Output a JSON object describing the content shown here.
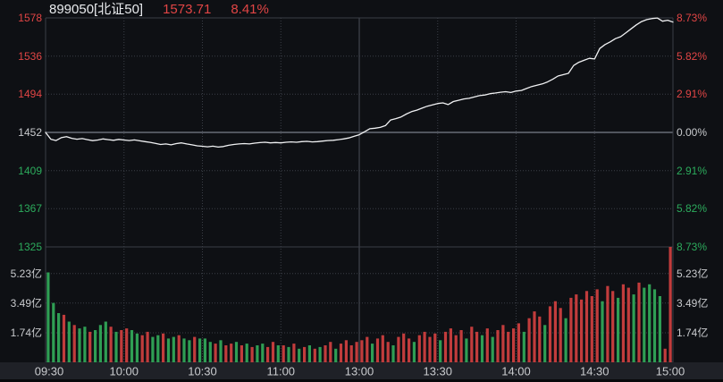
{
  "header": {
    "symbol": "899050[北证50]",
    "price": "1573.71",
    "change_pct": "8.41%"
  },
  "colors": {
    "background": "#0e1014",
    "axis_strip": "#1f2127",
    "border": "#3a3e46",
    "grid_dotted": "#3a3e46",
    "zero_line": "#51555e",
    "session_split_line": "#4a4e57",
    "up_red": "#e14545",
    "down_green": "#2cab5c",
    "neutral_text": "#c8cacd",
    "price_line": "#f0f1f3",
    "volume_up": "#c23c3c",
    "volume_down": "#2f9e54"
  },
  "chart_data": {
    "type": "line",
    "title": "899050[北证50] intraday price and volume",
    "legend_position": "none",
    "grid": "dotted",
    "x": {
      "session": [
        "09:30-11:30",
        "13:00-15:00"
      ],
      "tick_labels": [
        "09:30",
        "10:00",
        "10:30",
        "11:00",
        "13:00",
        "13:30",
        "14:00",
        "14:30",
        "15:00"
      ]
    },
    "price_axis": {
      "left_tick_labels": [
        "1578",
        "1536",
        "1494",
        "1452",
        "1409",
        "1367",
        "1325"
      ],
      "right_tick_labels": [
        "8.73%",
        "5.82%",
        "2.91%",
        "0.00%",
        "2.91%",
        "5.82%",
        "8.73%"
      ],
      "tick_colors": [
        "u",
        "u",
        "u",
        "n",
        "d",
        "d",
        "d"
      ],
      "range_pct": [
        -8.73,
        8.73
      ]
    },
    "volume_axis": {
      "tick_labels": [
        "5.23亿",
        "3.49亿",
        "1.74亿"
      ],
      "tick_values": [
        5.23,
        3.49,
        1.74
      ],
      "unit": "亿",
      "visible_max": 6.8
    },
    "price_pct": [
      0,
      -0.52,
      -0.62,
      -0.4,
      -0.32,
      -0.45,
      -0.52,
      -0.47,
      -0.55,
      -0.63,
      -0.58,
      -0.5,
      -0.55,
      -0.6,
      -0.53,
      -0.58,
      -0.62,
      -0.57,
      -0.64,
      -0.7,
      -0.76,
      -0.84,
      -0.92,
      -0.88,
      -0.95,
      -0.85,
      -0.8,
      -0.88,
      -0.95,
      -1.02,
      -1.06,
      -1.1,
      -1.05,
      -1.12,
      -1.08,
      -0.98,
      -0.92,
      -0.88,
      -0.85,
      -0.88,
      -0.82,
      -0.78,
      -0.75,
      -0.8,
      -0.77,
      -0.8,
      -0.75,
      -0.72,
      -0.75,
      -0.7,
      -0.68,
      -0.72,
      -0.7,
      -0.66,
      -0.62,
      -0.6,
      -0.55,
      -0.5,
      -0.42,
      -0.3,
      -0.18,
      0.05,
      0.28,
      0.32,
      0.38,
      0.52,
      0.95,
      1.05,
      1.18,
      1.4,
      1.58,
      1.7,
      1.85,
      2,
      2.1,
      2.2,
      2.25,
      2.12,
      2.35,
      2.45,
      2.55,
      2.6,
      2.7,
      2.8,
      2.85,
      2.95,
      3,
      3.06,
      3.1,
      3.04,
      3.15,
      3.2,
      3.35,
      3.5,
      3.6,
      3.7,
      3.85,
      4.05,
      4.3,
      4.4,
      4.5,
      5.1,
      5.35,
      5.5,
      5.65,
      5.6,
      6.4,
      6.7,
      6.9,
      7.15,
      7.3,
      7.6,
      7.9,
      8.2,
      8.45,
      8.6,
      8.68,
      8.72,
      8.48,
      8.55,
      8.41
    ],
    "volume_bars": {
      "values": [
        5.3,
        3.5,
        2.9,
        2.8,
        2.4,
        2.2,
        2.0,
        2.1,
        1.8,
        1.9,
        2.2,
        2.4,
        2.1,
        1.8,
        1.9,
        2.0,
        1.9,
        1.7,
        1.6,
        1.8,
        1.5,
        1.6,
        1.7,
        1.4,
        1.5,
        1.6,
        1.4,
        1.3,
        1.5,
        1.4,
        1.4,
        1.2,
        1.1,
        1.3,
        1.0,
        1.1,
        1.2,
        1.0,
        1.1,
        0.9,
        1.0,
        1.1,
        0.9,
        1.2,
        1.0,
        1.0,
        0.9,
        1.1,
        0.8,
        0.9,
        1.0,
        0.8,
        0.9,
        1.0,
        1.2,
        0.8,
        1.1,
        1.3,
        1.0,
        1.2,
        1.3,
        1.5,
        1.1,
        1.4,
        1.6,
        1.2,
        1.0,
        1.5,
        1.7,
        1.4,
        1.2,
        1.6,
        1.8,
        1.5,
        1.7,
        1.3,
        1.8,
        2.0,
        1.6,
        1.9,
        1.4,
        2.1,
        1.8,
        1.6,
        2.0,
        1.5,
        1.9,
        2.2,
        1.8,
        2.0,
        2.3,
        1.8,
        2.6,
        3.0,
        2.7,
        2.2,
        3.3,
        3.6,
        3.2,
        2.6,
        3.8,
        4.0,
        3.7,
        4.2,
        3.9,
        4.3,
        3.6,
        4.5,
        4.2,
        3.8,
        4.6,
        4.4,
        4.0,
        4.7,
        4.4,
        4.6,
        4.3,
        3.9,
        0.8,
        6.8
      ],
      "colors": "gggrgrggrgggrgrrggrrggrggrggrgggrgrrgrgrggrrgrgrgrgrgrrgrrrrrrgrrrgrrrgrrrrgrrrrgrrgrgrrrrrgrrrgrrrgrrrrrrgrrgrrgrggggrr",
      "color_key": {
        "r": "up",
        "g": "down"
      }
    }
  }
}
